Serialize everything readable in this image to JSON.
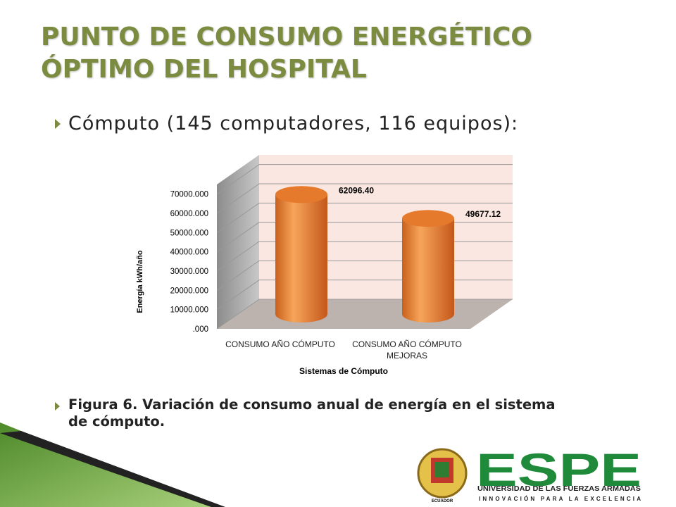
{
  "title_lines": [
    "PUNTO DE CONSUMO ENERGÉTICO",
    "ÓPTIMO DEL HOSPITAL"
  ],
  "bullet": "Cómputo (145 computadores, 116 equipos):",
  "chart_data": {
    "type": "bar3d",
    "categories": [
      "CONSUMO AÑO CÓMPUTO",
      "CONSUMO AÑO CÓMPUTO MEJORAS"
    ],
    "values": [
      62096.4,
      49677.12
    ],
    "value_labels": [
      "62096.40",
      "49677.12"
    ],
    "color": "#f08a3a",
    "x_label": "Sistemas de Cómputo",
    "y_label": "Energía kWh/año",
    "ylim": [
      0,
      75000
    ],
    "yticks": [
      {
        "value": 0,
        "label": ".000"
      },
      {
        "value": 10000,
        "label": "10000.000"
      },
      {
        "value": 20000,
        "label": "20000.000"
      },
      {
        "value": 30000,
        "label": "30000.000"
      },
      {
        "value": 40000,
        "label": "40000.000"
      },
      {
        "value": 50000,
        "label": "50000.000"
      },
      {
        "value": 60000,
        "label": "60000.000"
      },
      {
        "value": 70000,
        "label": "70000.000"
      }
    ],
    "grid": true
  },
  "caption": "Figura 6. Variación de consumo anual de energía en el sistema de cómputo.",
  "logo": {
    "name": "ESPE",
    "university": "UNIVERSIDAD DE LAS FUERZAS ARMADAS",
    "motto": "INNOVACIÓN PARA LA EXCELENCIA",
    "emblem_text": "ECUADOR"
  }
}
